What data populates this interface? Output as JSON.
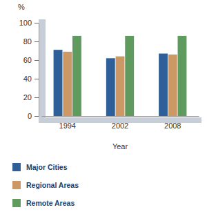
{
  "chart_data": {
    "type": "bar",
    "ylabel": "%",
    "xlabel": "Year",
    "categories": [
      "1994",
      "2002",
      "2008"
    ],
    "series": [
      {
        "name": "Major Cities",
        "color": "#2f5f98",
        "values": [
          71,
          62,
          67
        ]
      },
      {
        "name": "Regional Areas",
        "color": "#cc9966",
        "values": [
          69,
          64,
          66
        ]
      },
      {
        "name": "Remote Areas",
        "color": "#5f9a5f",
        "values": [
          86,
          86,
          86
        ]
      }
    ],
    "ylim": [
      0,
      100
    ],
    "yticks": [
      0,
      20,
      40,
      60,
      80,
      100
    ],
    "grid": false,
    "legend": "bottom-left"
  }
}
